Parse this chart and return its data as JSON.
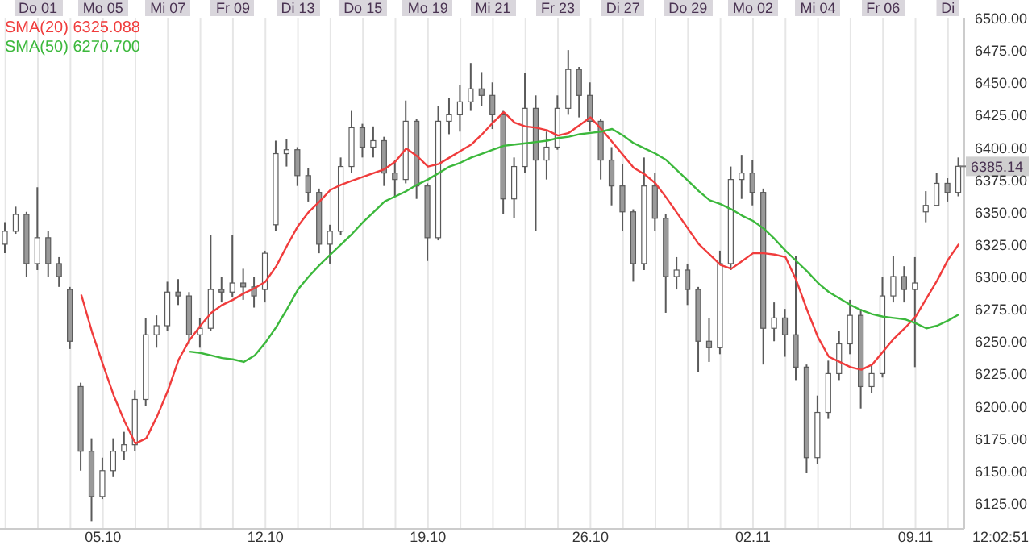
{
  "chart_data": {
    "type": "candlestick",
    "color": "#5a5a5a",
    "categories": [
      null,
      null,
      null,
      null,
      null,
      null,
      null,
      null,
      null,
      "05.10",
      null,
      null,
      null,
      null,
      null,
      null,
      null,
      null,
      null,
      null,
      null,
      null,
      null,
      null,
      "12.10",
      null,
      null,
      null,
      null,
      null,
      null,
      null,
      null,
      null,
      null,
      null,
      null,
      null,
      null,
      "19.10",
      null,
      null,
      null,
      null,
      null,
      null,
      null,
      null,
      null,
      null,
      null,
      null,
      null,
      null,
      "26.10",
      null,
      null,
      null,
      null,
      null,
      null,
      null,
      null,
      null,
      null,
      null,
      null,
      null,
      null,
      "02.11",
      null,
      null,
      null,
      null,
      null,
      null,
      null,
      null,
      null,
      null,
      null,
      null,
      null,
      null,
      "09.11",
      null,
      null,
      null,
      null
    ],
    "ohlc": [
      [
        6325,
        6342,
        6318,
        6335
      ],
      [
        6335,
        6354,
        6333,
        6348
      ],
      [
        6348,
        6350,
        6300,
        6310
      ],
      [
        6310,
        6369,
        6305,
        6330
      ],
      [
        6330,
        6335,
        6300,
        6310
      ],
      [
        6310,
        6315,
        6292,
        6300
      ],
      [
        6290,
        6292,
        6244,
        6250
      ],
      [
        6215,
        6218,
        6150,
        6165
      ],
      [
        6165,
        6175,
        6111,
        6130
      ],
      [
        6130,
        6160,
        6128,
        6150
      ],
      [
        6150,
        6175,
        6145,
        6165
      ],
      [
        6165,
        6180,
        6158,
        6170
      ],
      [
        6170,
        6212,
        6165,
        6205
      ],
      [
        6205,
        6268,
        6200,
        6255
      ],
      [
        6255,
        6270,
        6245,
        6262
      ],
      [
        6262,
        6296,
        6258,
        6288
      ],
      [
        6288,
        6298,
        6278,
        6285
      ],
      [
        6285,
        6288,
        6248,
        6255
      ],
      [
        6255,
        6268,
        6245,
        6260
      ],
      [
        6260,
        6332,
        6258,
        6290
      ],
      [
        6290,
        6300,
        6280,
        6288
      ],
      [
        6288,
        6332,
        6284,
        6295
      ],
      [
        6295,
        6306,
        6282,
        6292
      ],
      [
        6292,
        6300,
        6276,
        6285
      ],
      [
        6290,
        6320,
        6280,
        6318
      ],
      [
        6340,
        6405,
        6335,
        6395
      ],
      [
        6395,
        6406,
        6385,
        6398
      ],
      [
        6398,
        6400,
        6370,
        6378
      ],
      [
        6378,
        6384,
        6358,
        6365
      ],
      [
        6365,
        6368,
        6318,
        6325
      ],
      [
        6325,
        6340,
        6310,
        6335
      ],
      [
        6335,
        6392,
        6332,
        6385
      ],
      [
        6385,
        6428,
        6380,
        6415
      ],
      [
        6415,
        6418,
        6392,
        6400
      ],
      [
        6400,
        6416,
        6392,
        6405
      ],
      [
        6405,
        6408,
        6370,
        6380
      ],
      [
        6380,
        6390,
        6362,
        6375
      ],
      [
        6375,
        6436,
        6372,
        6420
      ],
      [
        6420,
        6422,
        6360,
        6370
      ],
      [
        6370,
        6372,
        6312,
        6330
      ],
      [
        6330,
        6432,
        6328,
        6420
      ],
      [
        6420,
        6438,
        6410,
        6425
      ],
      [
        6425,
        6448,
        6412,
        6435
      ],
      [
        6435,
        6465,
        6428,
        6445
      ],
      [
        6445,
        6458,
        6432,
        6440
      ],
      [
        6440,
        6450,
        6414,
        6425
      ],
      [
        6425,
        6428,
        6348,
        6360
      ],
      [
        6360,
        6392,
        6345,
        6385
      ],
      [
        6385,
        6457,
        6380,
        6430
      ],
      [
        6430,
        6440,
        6335,
        6390
      ],
      [
        6390,
        6412,
        6375,
        6400
      ],
      [
        6400,
        6440,
        6398,
        6430
      ],
      [
        6430,
        6475,
        6425,
        6460
      ],
      [
        6460,
        6462,
        6423,
        6440
      ],
      [
        6440,
        6450,
        6412,
        6420
      ],
      [
        6420,
        6422,
        6375,
        6390
      ],
      [
        6390,
        6400,
        6355,
        6370
      ],
      [
        6370,
        6387,
        6335,
        6350
      ],
      [
        6350,
        6352,
        6296,
        6310
      ],
      [
        6310,
        6392,
        6305,
        6370
      ],
      [
        6370,
        6380,
        6335,
        6345
      ],
      [
        6345,
        6348,
        6272,
        6300
      ],
      [
        6300,
        6315,
        6290,
        6305
      ],
      [
        6305,
        6310,
        6278,
        6290
      ],
      [
        6290,
        6292,
        6226,
        6250
      ],
      [
        6250,
        6268,
        6234,
        6245
      ],
      [
        6245,
        6320,
        6240,
        6310
      ],
      [
        6310,
        6385,
        6305,
        6375
      ],
      [
        6375,
        6394,
        6360,
        6380
      ],
      [
        6380,
        6390,
        6355,
        6365
      ],
      [
        6365,
        6368,
        6232,
        6260
      ],
      [
        6260,
        6280,
        6250,
        6268
      ],
      [
        6268,
        6275,
        6238,
        6255
      ],
      [
        6255,
        6316,
        6220,
        6230
      ],
      [
        6230,
        6232,
        6148,
        6160
      ],
      [
        6160,
        6208,
        6155,
        6195
      ],
      [
        6195,
        6235,
        6190,
        6225
      ],
      [
        6225,
        6258,
        6220,
        6248
      ],
      [
        6248,
        6282,
        6240,
        6270
      ],
      [
        6270,
        6275,
        6198,
        6215
      ],
      [
        6215,
        6232,
        6210,
        6225
      ],
      [
        6225,
        6300,
        6222,
        6285
      ],
      [
        6285,
        6316,
        6280,
        6300
      ],
      [
        6300,
        6308,
        6280,
        6290
      ],
      [
        6290,
        6315,
        6230,
        6295
      ],
      [
        6350,
        6366,
        6342,
        6355
      ],
      [
        6355,
        6380,
        6355,
        6372
      ],
      [
        6372,
        6376,
        6358,
        6365
      ],
      [
        6365,
        6392,
        6362,
        6385.14
      ]
    ],
    "series": [
      {
        "name": "SMA(20) 6325.088",
        "type": "line",
        "color": "#f03c3c",
        "values": [
          null,
          null,
          null,
          null,
          null,
          null,
          null,
          6286,
          6257,
          6232,
          6208,
          6188,
          6171,
          6175,
          6192,
          6212,
          6236,
          6251,
          6262,
          6272,
          6278,
          6282,
          6287,
          6291,
          6296,
          6308,
          6324,
          6339,
          6350,
          6358,
          6367,
          6371,
          6374,
          6377,
          6380,
          6383,
          6389,
          6399,
          6393,
          6385,
          6387,
          6392,
          6397,
          6402,
          6410,
          6419,
          6427,
          6419,
          6416,
          6415,
          6413,
          6409,
          6411,
          6417,
          6423,
          6414,
          6404,
          6394,
          6384,
          6379,
          6372,
          6361,
          6349,
          6337,
          6325,
          6317,
          6309,
          6306,
          6312,
          6318,
          6318,
          6317,
          6315,
          6297,
          6274,
          6253,
          6238,
          6234,
          6230,
          6228,
          6232,
          6242,
          6252,
          6260,
          6269,
          6283,
          6297,
          6313,
          6325.088
        ]
      },
      {
        "name": "SMA(50) 6270.700",
        "type": "line",
        "color": "#3cb83c",
        "values": [
          null,
          null,
          null,
          null,
          null,
          null,
          null,
          null,
          null,
          null,
          null,
          null,
          null,
          null,
          null,
          null,
          null,
          6242,
          6241,
          6239,
          6237,
          6236,
          6234,
          6239,
          6249,
          6261,
          6275,
          6290,
          6300,
          6309,
          6317,
          6325,
          6333,
          6342,
          6350,
          6358,
          6362,
          6366,
          6371,
          6375,
          6380,
          6385,
          6388,
          6392,
          6395,
          6398,
          6401,
          6402,
          6403,
          6404,
          6405,
          6407,
          6408,
          6410,
          6411,
          6412,
          6414,
          6409,
          6403,
          6399,
          6395,
          6390,
          6382,
          6374,
          6366,
          6359,
          6356,
          6352,
          6347,
          6343,
          6337,
          6329,
          6320,
          6312,
          6304,
          6295,
          6288,
          6283,
          6278,
          6274,
          6271,
          6269,
          6268,
          6267,
          6264,
          6260,
          6262,
          6266,
          6270.7
        ]
      }
    ],
    "ylim": [
      6105,
      6500
    ],
    "yticks": [
      {
        "value": 6125,
        "label": "6125.00"
      },
      {
        "value": 6150,
        "label": "6150.00"
      },
      {
        "value": 6175,
        "label": "6175.00"
      },
      {
        "value": 6200,
        "label": "6200.00"
      },
      {
        "value": 6225,
        "label": "6225.00"
      },
      {
        "value": 6250,
        "label": "6250.00"
      },
      {
        "value": 6275,
        "label": "6275.00"
      },
      {
        "value": 6300,
        "label": "6300.00"
      },
      {
        "value": 6325,
        "label": "6325.00"
      },
      {
        "value": 6350,
        "label": "6350.00"
      },
      {
        "value": 6375,
        "label": "6375.00"
      },
      {
        "value": 6400,
        "label": "6400.00"
      },
      {
        "value": 6425,
        "label": "6425.00"
      },
      {
        "value": 6450,
        "label": "6450.00"
      },
      {
        "value": 6475,
        "label": "6475.00"
      },
      {
        "value": 6500,
        "label": "6500.00"
      }
    ],
    "grid": "x",
    "legend": "top left",
    "annotations": [
      "Do 01",
      "Mo 05",
      "Mi 07",
      "Fr 09",
      "Di 13",
      "Do 15",
      "Mo 19",
      "Mi 21",
      "Fr 23",
      "Di 27",
      "Do 29",
      "Mo 02",
      "Mi 04",
      "Fr 06",
      "Di",
      "12:02:51",
      {
        "text": "6385.14",
        "y": 6385.14
      }
    ]
  }
}
